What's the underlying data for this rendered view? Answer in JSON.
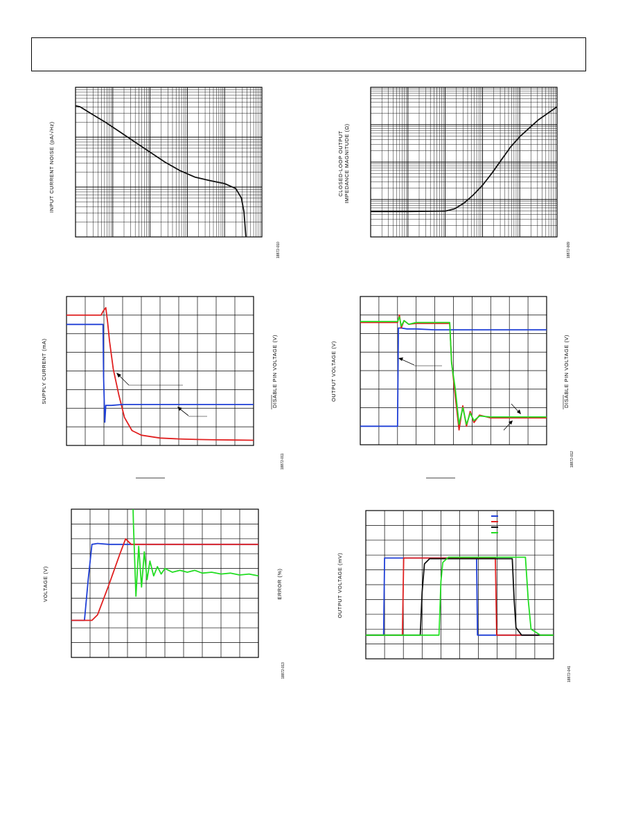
{
  "header": {
    "box": ""
  },
  "colors": {
    "blue": "#1f3fd6",
    "red": "#e02020",
    "black": "#111111",
    "green": "#22dd22",
    "grid": "#000000"
  },
  "chart_data": [
    {
      "id": "input-current-noise",
      "type": "line",
      "ylabel": "INPUT CURRENT NOISE (pA/√Hz)",
      "figure_code": "18872-010",
      "xscale": "log",
      "yscale": "log",
      "xdecades": 5,
      "ydecades": 3,
      "series": [
        {
          "color": "black",
          "x": [
            0,
            0.12,
            0.4,
            0.8,
            1.2,
            1.6,
            2.0,
            2.4,
            2.8,
            3.2,
            3.6,
            4.0,
            4.3,
            4.45,
            4.52,
            4.55,
            4.57
          ],
          "y": [
            2.63,
            2.61,
            2.48,
            2.3,
            2.1,
            1.9,
            1.7,
            1.5,
            1.33,
            1.2,
            1.13,
            1.07,
            0.97,
            0.78,
            0.5,
            0.2,
            0
          ]
        }
      ]
    },
    {
      "id": "closed-loop-output-impedance",
      "type": "line",
      "ylabel": "CLOSED-LOOP OUTPUT",
      "ylabel2": "IMPEDANCE MAGNITUDE (Ω)",
      "figure_code": "18872-009",
      "xscale": "log",
      "yscale": "log",
      "xdecades": 5,
      "ydecades": 4,
      "series": [
        {
          "color": "black",
          "x": [
            0,
            1.0,
            2.0,
            2.25,
            2.5,
            2.75,
            3.0,
            3.25,
            3.5,
            3.75,
            4.0,
            4.3,
            4.5,
            5.0
          ],
          "y": [
            0.68,
            0.68,
            0.69,
            0.75,
            0.9,
            1.12,
            1.38,
            1.7,
            2.05,
            2.4,
            2.68,
            2.95,
            3.13,
            3.48
          ]
        }
      ]
    },
    {
      "id": "supply-current-disable",
      "type": "line",
      "ylabel": "SUPPLY CURRENT (mA)",
      "y2label": "DISABLE PIN VOLTAGE (V)",
      "figure_code": "18872-011",
      "xlim": [
        0,
        10
      ],
      "ylim": [
        0,
        8
      ],
      "series": [
        {
          "color": "red",
          "x": [
            0,
            1.85,
            1.95,
            2.1,
            2.2,
            2.3,
            2.5,
            2.8,
            3.1,
            3.5,
            4.0,
            5.0,
            6.0,
            7.0,
            8.0,
            9.0,
            10.0
          ],
          "y": [
            7.0,
            7.0,
            7.2,
            7.4,
            6.6,
            5.6,
            4.1,
            2.7,
            1.5,
            0.8,
            0.55,
            0.4,
            0.35,
            0.32,
            0.3,
            0.29,
            0.28
          ]
        },
        {
          "color": "blue",
          "x": [
            0,
            1.95,
            1.98,
            2.05,
            2.1,
            2.4,
            3.0,
            4.0,
            5.0,
            6.0,
            8.0,
            10.0
          ],
          "y": [
            6.5,
            6.5,
            3.7,
            1.25,
            2.15,
            2.15,
            2.2,
            2.2,
            2.2,
            2.2,
            2.2,
            2.2
          ]
        }
      ],
      "annotations": [
        {
          "label": "",
          "target_series": "red"
        },
        {
          "label": "",
          "target_series": "blue"
        }
      ],
      "xlabel": ""
    },
    {
      "id": "output-voltage-disable",
      "type": "line",
      "ylabel": "OUTPUT VOLTAGE (V)",
      "y2label": "DISABLE PIN VOLTAGE (V)",
      "figure_code": "18872-012",
      "xlim": [
        0,
        10
      ],
      "ylim": [
        0,
        8
      ],
      "series": [
        {
          "color": "blue",
          "x": [
            0,
            2.0,
            2.05,
            2.2,
            2.5,
            3.0,
            4.0,
            5.0,
            6.0,
            8.0,
            10.0
          ],
          "y": [
            1.0,
            1.0,
            6.3,
            6.3,
            6.25,
            6.25,
            6.2,
            6.2,
            6.2,
            6.2,
            6.2
          ]
        },
        {
          "color": "red",
          "x": [
            0,
            2.0,
            2.1,
            2.2,
            2.35,
            2.6,
            3.0,
            4.0,
            4.8,
            4.9,
            5.1,
            5.3,
            5.5,
            5.7,
            5.9,
            6.1,
            6.4,
            7.0,
            8.0,
            10.0
          ],
          "y": [
            6.6,
            6.6,
            7.0,
            6.3,
            6.7,
            6.5,
            6.55,
            6.55,
            6.55,
            4.5,
            2.6,
            0.8,
            2.1,
            1.0,
            1.8,
            1.2,
            1.6,
            1.45,
            1.45,
            1.45
          ]
        },
        {
          "color": "green",
          "x": [
            0,
            2.0,
            2.1,
            2.2,
            2.35,
            2.6,
            3.0,
            4.0,
            4.8,
            4.9,
            5.1,
            5.3,
            5.5,
            5.7,
            5.9,
            6.1,
            6.4,
            7.0,
            8.0,
            10.0
          ],
          "y": [
            6.65,
            6.65,
            6.9,
            6.4,
            6.7,
            6.5,
            6.6,
            6.6,
            6.6,
            4.4,
            3.0,
            1.1,
            2.0,
            1.1,
            1.7,
            1.3,
            1.55,
            1.5,
            1.5,
            1.5
          ]
        }
      ],
      "annotations": [
        {
          "label": "",
          "target_series": "blue"
        },
        {
          "label": "",
          "target_series": "green"
        },
        {
          "label": "",
          "target_series": "red"
        }
      ],
      "xlabel": ""
    },
    {
      "id": "voltage-error-settling",
      "type": "line",
      "ylabel": "VOLTAGE (V)",
      "y2label": "ERROR (%)",
      "figure_code": "18872-013",
      "xlim": [
        0,
        10
      ],
      "ylim": [
        0,
        8
      ],
      "series": [
        {
          "color": "blue",
          "x": [
            0,
            0.7,
            0.9,
            1.1,
            1.4,
            2.0,
            3.0,
            5.0,
            10.0
          ],
          "y": [
            2.0,
            2.0,
            4.2,
            6.1,
            6.15,
            6.1,
            6.1,
            6.1,
            6.1
          ]
        },
        {
          "color": "red",
          "x": [
            0,
            1.1,
            1.4,
            2.0,
            2.6,
            2.9,
            3.2,
            3.6,
            4.0,
            5.0,
            10.0
          ],
          "y": [
            2.0,
            2.0,
            2.3,
            3.9,
            5.6,
            6.4,
            6.1,
            6.1,
            6.1,
            6.1,
            6.1
          ]
        },
        {
          "color": "green",
          "x": [
            3.3,
            3.32,
            3.45,
            3.6,
            3.75,
            3.9,
            4.05,
            4.2,
            4.4,
            4.6,
            4.8,
            5.0,
            5.4,
            5.8,
            6.2,
            6.6,
            7.0,
            7.5,
            8.0,
            8.5,
            9.0,
            9.5,
            10.0
          ],
          "y": [
            8.0,
            7.2,
            3.3,
            6.0,
            3.8,
            5.7,
            4.2,
            5.2,
            4.4,
            4.9,
            4.5,
            4.8,
            4.6,
            4.7,
            4.6,
            4.7,
            4.55,
            4.6,
            4.5,
            4.55,
            4.45,
            4.5,
            4.4
          ]
        }
      ],
      "annotations": [
        {
          "label": ""
        }
      ]
    },
    {
      "id": "output-voltage-mv-pulses",
      "type": "line",
      "ylabel": "OUTPUT VOLTAGE (mV)",
      "figure_code": "18872-041",
      "xlim": [
        0,
        10
      ],
      "ylim": [
        0,
        10
      ],
      "legend": {
        "position": "top-right",
        "entries": [
          {
            "color": "blue",
            "label": ""
          },
          {
            "color": "red",
            "label": ""
          },
          {
            "color": "black",
            "label": ""
          },
          {
            "color": "green",
            "label": ""
          }
        ]
      },
      "series": [
        {
          "color": "blue",
          "x": [
            0,
            0.95,
            1.0,
            1.1,
            5.9,
            5.95,
            6.05,
            10.0
          ],
          "y": [
            1.6,
            1.6,
            6.8,
            6.8,
            6.8,
            1.6,
            1.6,
            1.6
          ]
        },
        {
          "color": "red",
          "x": [
            0,
            1.95,
            2.02,
            2.1,
            6.9,
            6.97,
            7.05,
            10.0
          ],
          "y": [
            1.6,
            1.6,
            6.8,
            6.8,
            6.8,
            1.6,
            1.6,
            1.6
          ]
        },
        {
          "color": "black",
          "x": [
            0,
            2.9,
            3.0,
            3.12,
            3.4,
            7.8,
            7.9,
            8.0,
            8.3,
            10.0
          ],
          "y": [
            1.6,
            1.6,
            4.5,
            6.4,
            6.75,
            6.75,
            4.0,
            2.1,
            1.6,
            1.6
          ]
        },
        {
          "color": "green",
          "x": [
            0,
            3.9,
            4.0,
            4.1,
            4.4,
            8.5,
            8.65,
            8.8,
            9.3,
            10.0
          ],
          "y": [
            1.6,
            1.6,
            5.2,
            6.5,
            6.85,
            6.85,
            4.0,
            2.0,
            1.6,
            1.6
          ]
        }
      ]
    }
  ]
}
